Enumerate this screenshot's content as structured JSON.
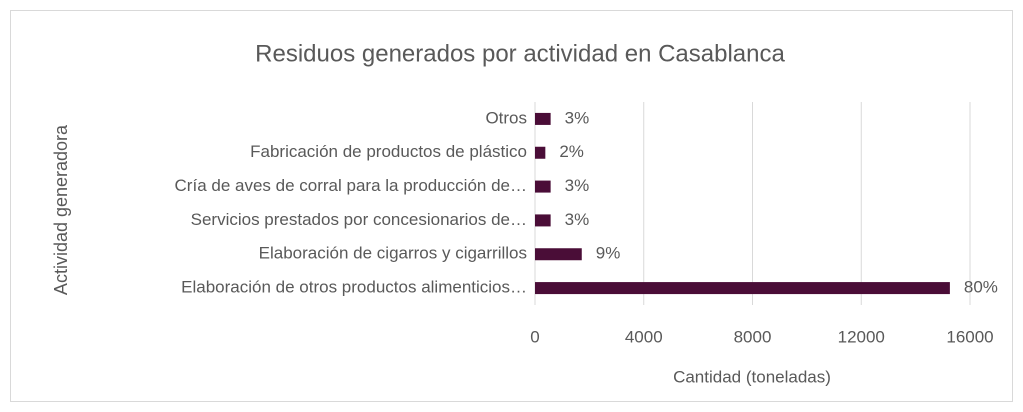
{
  "chart_data": {
    "type": "barh",
    "title": "Residuos generados por actividad en Casablanca",
    "xlabel": "Cantidad (toneladas)",
    "ylabel": "Actividad generadora",
    "categories": [
      "Elaboración de otros productos alimenticios…",
      "Elaboración de cigarros y cigarrillos",
      "Servicios prestados por concesionarios de…",
      "Cría de aves de corral para la producción de…",
      "Fabricación de productos de plástico",
      "Otros"
    ],
    "values": [
      15260,
      1720,
      575,
      575,
      380,
      575
    ],
    "value_labels": [
      "80%",
      "9%",
      "3%",
      "3%",
      "2%",
      "3%"
    ],
    "color": "#4a0d37",
    "xlim": [
      0,
      16000
    ],
    "xticks": [
      0,
      4000,
      8000,
      12000,
      16000
    ],
    "grid": true
  }
}
